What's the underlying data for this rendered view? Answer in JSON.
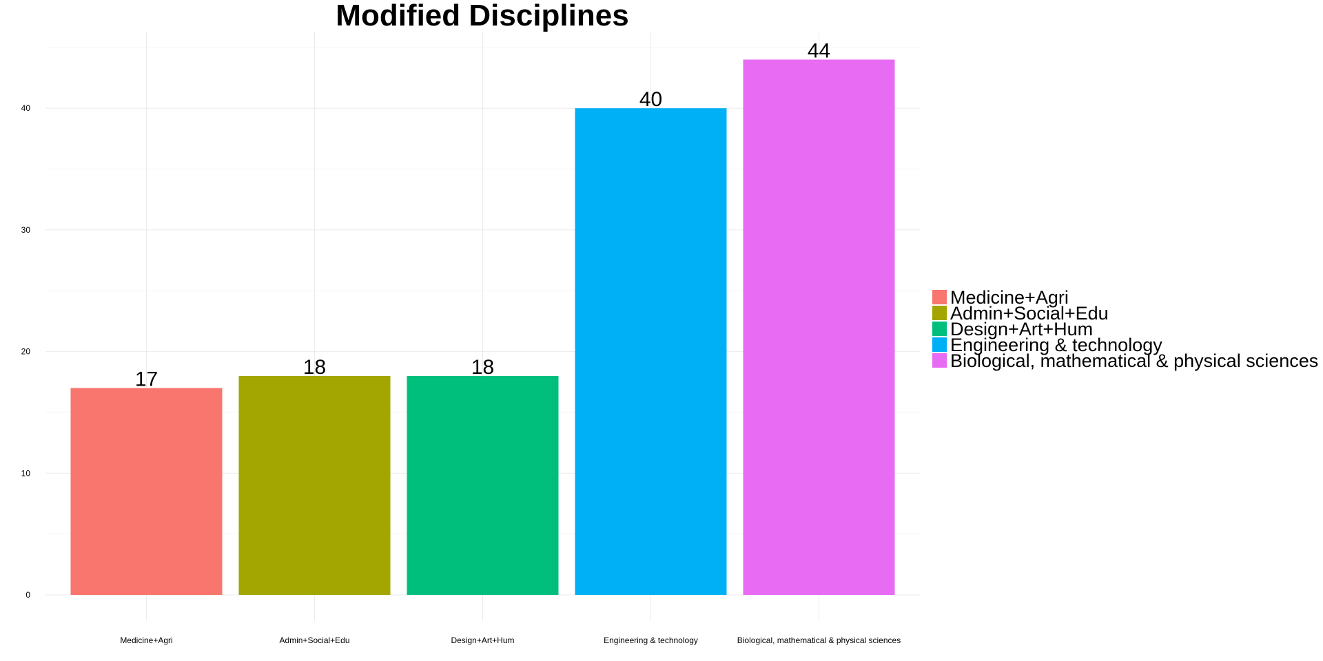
{
  "chart_data": {
    "type": "bar",
    "title": "Modified Disciplines",
    "xlabel": "",
    "ylabel": "",
    "categories": [
      "Medicine+Agri",
      "Admin+Social+Edu",
      "Design+Art+Hum",
      "Engineering & technology",
      "Biological, mathematical & physical sciences"
    ],
    "values": [
      17,
      18,
      18,
      40,
      44
    ],
    "data_labels": [
      "17",
      "18",
      "18",
      "40",
      "44"
    ],
    "colors": [
      "#F8766D",
      "#A3A500",
      "#00BF7D",
      "#00B0F6",
      "#E76BF3"
    ],
    "ylim": [
      0,
      46.2
    ],
    "yticks": [
      0,
      10,
      20,
      30,
      40
    ],
    "grid": true,
    "legend": {
      "placement": "right",
      "entries": [
        "Medicine+Agri",
        "Admin+Social+Edu",
        "Design+Art+Hum",
        "Engineering & technology",
        "Biological, mathematical & physical sciences"
      ]
    }
  }
}
